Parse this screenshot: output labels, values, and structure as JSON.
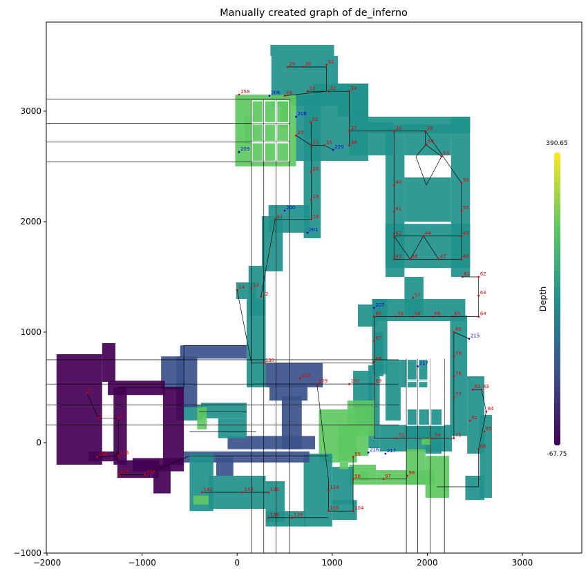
{
  "chart_data": {
    "type": "scatter",
    "title": "Manually created graph of de_inferno",
    "xlabel": "",
    "ylabel": "",
    "xlim": [
      -2000,
      3500
    ],
    "ylim": [
      -1000,
      3800
    ],
    "xticks": [
      -2000,
      -1000,
      0,
      1000,
      2000,
      3000
    ],
    "yticks": [
      -1000,
      0,
      1000,
      2000,
      3000
    ],
    "grid": false,
    "colorbar": {
      "label": "Depth",
      "max": "390.65",
      "min": "-67.75",
      "colors": [
        "#440154",
        "#3b528b",
        "#21918c",
        "#5ec962",
        "#fde725"
      ]
    },
    "area_color_by_depth": true,
    "node_color_red": "#dd0000",
    "node_color_blue": "#0000dd",
    "nodes_sample": [
      {
        "id": "29",
        "x": 530,
        "y": 3400
      },
      {
        "id": "30",
        "x": 700,
        "y": 3400
      },
      {
        "id": "31",
        "x": 940,
        "y": 3420
      },
      {
        "id": "158",
        "x": 20,
        "y": 3150
      },
      {
        "id": "206",
        "x": 340,
        "y": 3140
      },
      {
        "id": "28",
        "x": 500,
        "y": 3140
      },
      {
        "id": "33",
        "x": 740,
        "y": 3180
      },
      {
        "id": "32",
        "x": 960,
        "y": 3180
      },
      {
        "id": "34",
        "x": 1180,
        "y": 3180
      },
      {
        "id": "208",
        "x": 620,
        "y": 2950
      },
      {
        "id": "22",
        "x": 770,
        "y": 2900
      },
      {
        "id": "37",
        "x": 1180,
        "y": 2820
      },
      {
        "id": "38",
        "x": 1650,
        "y": 2820
      },
      {
        "id": "39",
        "x": 1980,
        "y": 2820
      },
      {
        "id": "23",
        "x": 620,
        "y": 2780
      },
      {
        "id": "21",
        "x": 780,
        "y": 2690
      },
      {
        "id": "220",
        "x": 1010,
        "y": 2650
      },
      {
        "id": "36",
        "x": 1180,
        "y": 2690
      },
      {
        "id": "35",
        "x": 920,
        "y": 2690
      },
      {
        "id": "54",
        "x": 1990,
        "y": 2700
      },
      {
        "id": "53",
        "x": 2150,
        "y": 2590
      },
      {
        "id": "209",
        "x": 20,
        "y": 2630
      },
      {
        "id": "20",
        "x": 780,
        "y": 2450
      },
      {
        "id": "50",
        "x": 2360,
        "y": 2350
      },
      {
        "id": "40",
        "x": 1650,
        "y": 2330
      },
      {
        "id": "19",
        "x": 780,
        "y": 2200
      },
      {
        "id": "200",
        "x": 500,
        "y": 2100
      },
      {
        "id": "41",
        "x": 1650,
        "y": 2090
      },
      {
        "id": "55",
        "x": 2360,
        "y": 2100
      },
      {
        "id": "18",
        "x": 780,
        "y": 2020
      },
      {
        "id": "17",
        "x": 400,
        "y": 2020
      },
      {
        "id": "201",
        "x": 740,
        "y": 1900
      },
      {
        "id": "42",
        "x": 1650,
        "y": 1870
      },
      {
        "id": "44",
        "x": 1960,
        "y": 1870
      },
      {
        "id": "45",
        "x": 2360,
        "y": 1870
      },
      {
        "id": "43",
        "x": 1650,
        "y": 1660
      },
      {
        "id": "46",
        "x": 1820,
        "y": 1660
      },
      {
        "id": "47",
        "x": 2120,
        "y": 1660
      },
      {
        "id": "48",
        "x": 2360,
        "y": 1660
      },
      {
        "id": "61",
        "x": 2370,
        "y": 1500
      },
      {
        "id": "62",
        "x": 2540,
        "y": 1500
      },
      {
        "id": "14",
        "x": 0,
        "y": 1380
      },
      {
        "id": "13",
        "x": 150,
        "y": 1400
      },
      {
        "id": "12",
        "x": 250,
        "y": 1320
      },
      {
        "id": "57",
        "x": 1850,
        "y": 1310
      },
      {
        "id": "63",
        "x": 2540,
        "y": 1330
      },
      {
        "id": "207",
        "x": 1440,
        "y": 1220
      },
      {
        "id": "60",
        "x": 1440,
        "y": 1140
      },
      {
        "id": "59",
        "x": 1670,
        "y": 1140
      },
      {
        "id": "58",
        "x": 1850,
        "y": 1140
      },
      {
        "id": "66",
        "x": 2060,
        "y": 1140
      },
      {
        "id": "65",
        "x": 2270,
        "y": 1140
      },
      {
        "id": "64",
        "x": 2540,
        "y": 1140
      },
      {
        "id": "80",
        "x": 2280,
        "y": 1000
      },
      {
        "id": "215",
        "x": 2440,
        "y": 940
      },
      {
        "id": "67",
        "x": 1440,
        "y": 920
      },
      {
        "id": "79",
        "x": 2280,
        "y": 780
      },
      {
        "id": "130",
        "x": 280,
        "y": 720
      },
      {
        "id": "68",
        "x": 1440,
        "y": 730
      },
      {
        "id": "217",
        "x": 1900,
        "y": 690
      },
      {
        "id": "110",
        "x": 660,
        "y": 580
      },
      {
        "id": "78",
        "x": 2280,
        "y": 600
      },
      {
        "id": "109",
        "x": 840,
        "y": 530
      },
      {
        "id": "107",
        "x": 1180,
        "y": 530
      },
      {
        "id": "69",
        "x": 1440,
        "y": 530
      },
      {
        "id": "82",
        "x": 2480,
        "y": 480
      },
      {
        "id": "83",
        "x": 2570,
        "y": 480
      },
      {
        "id": "77",
        "x": 2280,
        "y": 410
      },
      {
        "id": "84",
        "x": 2620,
        "y": 280
      },
      {
        "id": "81",
        "x": 2450,
        "y": 200
      },
      {
        "id": "85",
        "x": 2600,
        "y": 100
      },
      {
        "id": "216",
        "x": 1380,
        "y": -90
      },
      {
        "id": "217b",
        "x": 1560,
        "y": -100
      },
      {
        "id": "72",
        "x": 1680,
        "y": 40
      },
      {
        "id": "74",
        "x": 2060,
        "y": 40
      },
      {
        "id": "75",
        "x": 2280,
        "y": 40
      },
      {
        "id": "86",
        "x": 2540,
        "y": -60
      },
      {
        "id": "95",
        "x": 1220,
        "y": -130
      },
      {
        "id": "96",
        "x": 1220,
        "y": -330
      },
      {
        "id": "97",
        "x": 1540,
        "y": -330
      },
      {
        "id": "98",
        "x": 1790,
        "y": -300
      },
      {
        "id": "104",
        "x": 1220,
        "y": -620
      },
      {
        "id": "105",
        "x": 960,
        "y": -620
      },
      {
        "id": "114",
        "x": 960,
        "y": -430
      },
      {
        "id": "128",
        "x": 580,
        "y": -680
      },
      {
        "id": "129",
        "x": 330,
        "y": -680
      },
      {
        "id": "130b",
        "x": 330,
        "y": -450
      },
      {
        "id": "143",
        "x": 60,
        "y": -450
      },
      {
        "id": "142",
        "x": -370,
        "y": -450
      },
      {
        "id": "145",
        "x": -1470,
        "y": -130
      },
      {
        "id": "146",
        "x": -1250,
        "y": -120
      },
      {
        "id": "147",
        "x": -1250,
        "y": -290
      },
      {
        "id": "144",
        "x": -970,
        "y": -290
      },
      {
        "id": "0",
        "x": -1580,
        "y": 450
      },
      {
        "id": "1",
        "x": -1460,
        "y": 220
      },
      {
        "id": "2",
        "x": -1250,
        "y": 220
      }
    ]
  }
}
